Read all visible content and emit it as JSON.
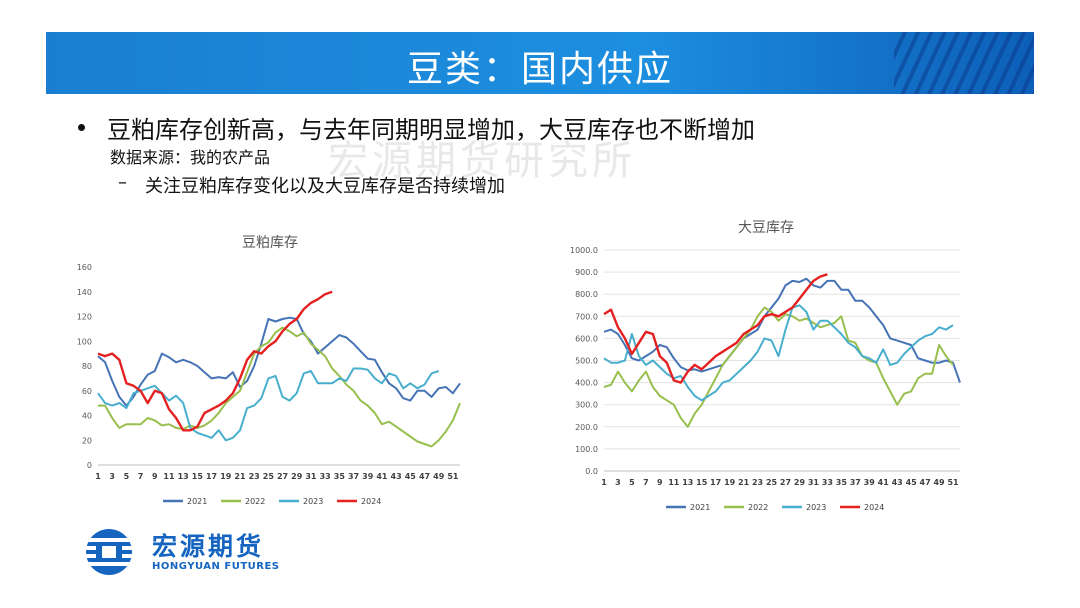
{
  "header": {
    "title": "豆类：国内供应"
  },
  "bullet": {
    "text": "豆粕库存创新高，与去年同期明显增加，大豆库存也不断增加"
  },
  "source": {
    "text": "数据来源：我的农产品"
  },
  "watermark": {
    "text": "宏源期货研究所"
  },
  "sub_bullet": {
    "dash": "–",
    "text": "关注豆粕库存变化以及大豆库存是否持续增加"
  },
  "logo": {
    "cn": "宏源期货",
    "en": "HONGYUAN FUTURES"
  },
  "colors": {
    "s2021": "#4673b6",
    "s2022": "#98bf4e",
    "s2023": "#48aecd",
    "s2024": "#e42020",
    "banner": "#1d8fe0"
  },
  "chart_data": [
    {
      "type": "line",
      "title": "豆粕库存",
      "ylim": [
        0,
        160
      ],
      "yticks": [
        "0",
        "20",
        "40",
        "60",
        "80",
        "100",
        "120",
        "140",
        "160"
      ],
      "xlim": [
        1,
        52
      ],
      "xticks": [
        "1",
        "3",
        "5",
        "7",
        "9",
        "11",
        "13",
        "15",
        "17",
        "19",
        "21",
        "23",
        "25",
        "27",
        "29",
        "31",
        "33",
        "35",
        "37",
        "39",
        "41",
        "43",
        "45",
        "47",
        "49",
        "51"
      ],
      "series": [
        {
          "name": "2021",
          "values": [
            88,
            83,
            68,
            55,
            48,
            55,
            65,
            73,
            76,
            90,
            87,
            83,
            85,
            83,
            80,
            75,
            70,
            71,
            70,
            75,
            63,
            68,
            80,
            98,
            118,
            116,
            118,
            119,
            118,
            106,
            100,
            90,
            95,
            100,
            105,
            103,
            98,
            92,
            86,
            85,
            75,
            66,
            62,
            54,
            52,
            60,
            60,
            55,
            62,
            63,
            58,
            66
          ]
        },
        {
          "name": "2022",
          "values": [
            48,
            48,
            38,
            30,
            33,
            33,
            33,
            38,
            36,
            32,
            33,
            30,
            29,
            32,
            30,
            32,
            36,
            42,
            50,
            55,
            60,
            75,
            90,
            96,
            99,
            107,
            111,
            108,
            104,
            107,
            98,
            93,
            88,
            78,
            72,
            65,
            60,
            52,
            48,
            42,
            33,
            35,
            31,
            27,
            23,
            19,
            17,
            15,
            20,
            27,
            36,
            50
          ]
        },
        {
          "name": "2023",
          "values": [
            58,
            50,
            48,
            50,
            46,
            58,
            60,
            62,
            64,
            58,
            52,
            56,
            50,
            30,
            26,
            24,
            22,
            28,
            20,
            22,
            28,
            46,
            48,
            54,
            70,
            72,
            55,
            52,
            58,
            74,
            76,
            66,
            66,
            66,
            70,
            68,
            78,
            78,
            77,
            70,
            66,
            74,
            72,
            62,
            66,
            62,
            65,
            74,
            76
          ]
        },
        {
          "name": "2024",
          "values": [
            90,
            88,
            90,
            85,
            66,
            64,
            60,
            50,
            60,
            58,
            45,
            38,
            28,
            28,
            31,
            42,
            45,
            48,
            52,
            58,
            70,
            85,
            92,
            90,
            96,
            100,
            108,
            114,
            118,
            126,
            131,
            134,
            138,
            140
          ]
        }
      ],
      "legend": [
        "2021",
        "2022",
        "2023",
        "2024"
      ]
    },
    {
      "type": "line",
      "title": "大豆库存",
      "ylim": [
        0,
        1000
      ],
      "yticks": [
        "0.0",
        "100.0",
        "200.0",
        "300.0",
        "400.0",
        "500.0",
        "600.0",
        "700.0",
        "800.0",
        "900.0",
        "1000.0"
      ],
      "xlim": [
        1,
        52
      ],
      "xticks": [
        "1",
        "3",
        "5",
        "7",
        "9",
        "11",
        "13",
        "15",
        "17",
        "19",
        "21",
        "23",
        "25",
        "27",
        "29",
        "31",
        "33",
        "35",
        "37",
        "39",
        "41",
        "43",
        "45",
        "47",
        "49",
        "51"
      ],
      "series": [
        {
          "name": "2021",
          "values": [
            630,
            640,
            620,
            570,
            510,
            500,
            520,
            540,
            570,
            560,
            510,
            470,
            455,
            460,
            450,
            460,
            470,
            480,
            520,
            560,
            600,
            620,
            640,
            700,
            740,
            780,
            840,
            860,
            855,
            870,
            840,
            830,
            860,
            860,
            820,
            820,
            770,
            770,
            740,
            700,
            660,
            600,
            590,
            580,
            570,
            510,
            500,
            490,
            490,
            500,
            490,
            400
          ]
        },
        {
          "name": "2022",
          "values": [
            380,
            390,
            450,
            400,
            360,
            410,
            450,
            380,
            340,
            320,
            300,
            240,
            200,
            260,
            300,
            360,
            420,
            480,
            520,
            560,
            600,
            640,
            700,
            740,
            720,
            680,
            710,
            700,
            680,
            690,
            670,
            650,
            660,
            670,
            700,
            590,
            580,
            520,
            500,
            490,
            420,
            360,
            300,
            350,
            360,
            420,
            440,
            440,
            570,
            520,
            480
          ]
        },
        {
          "name": "2023",
          "values": [
            510,
            490,
            490,
            500,
            620,
            520,
            480,
            500,
            470,
            440,
            420,
            430,
            380,
            340,
            320,
            340,
            360,
            400,
            410,
            440,
            470,
            500,
            540,
            600,
            590,
            520,
            640,
            740,
            750,
            720,
            640,
            680,
            680,
            650,
            620,
            580,
            560,
            520,
            510,
            490,
            550,
            480,
            490,
            530,
            560,
            590,
            610,
            620,
            650,
            640,
            660
          ]
        },
        {
          "name": "2024",
          "values": [
            710,
            730,
            650,
            600,
            530,
            580,
            630,
            620,
            520,
            490,
            410,
            400,
            450,
            480,
            460,
            490,
            520,
            540,
            560,
            580,
            620,
            640,
            660,
            700,
            710,
            700,
            720,
            740,
            780,
            820,
            860,
            880,
            890
          ]
        }
      ],
      "legend": [
        "2021",
        "2022",
        "2023",
        "2024"
      ]
    }
  ]
}
